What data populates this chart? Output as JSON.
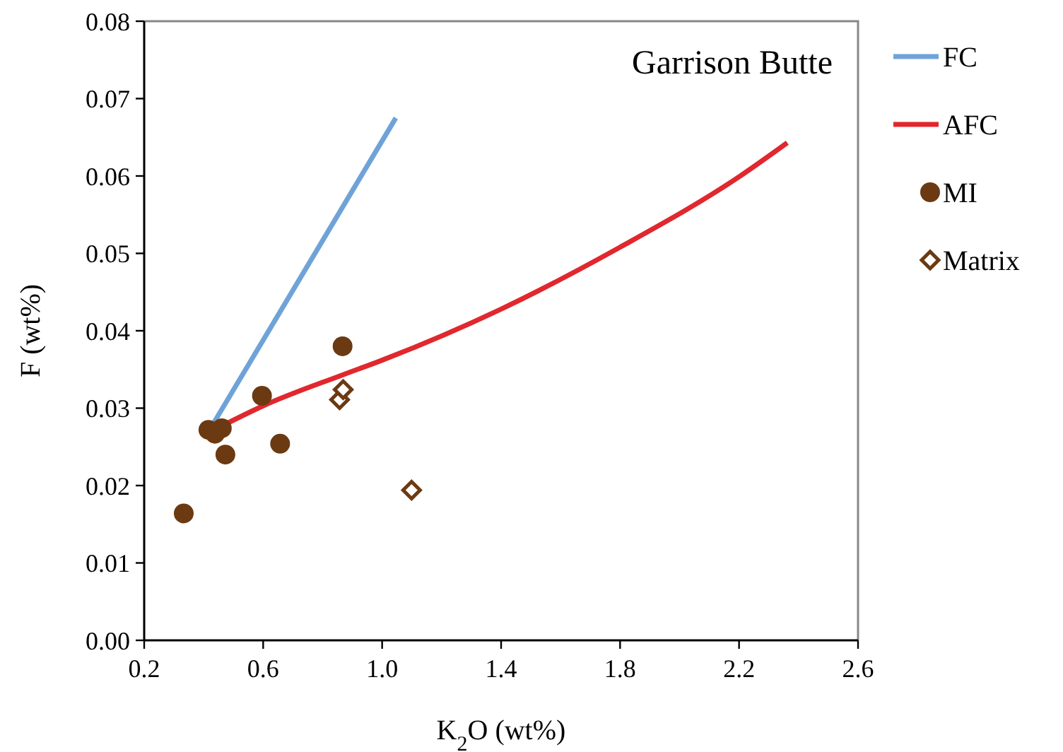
{
  "chart_data": {
    "type": "scatter",
    "title": "Garrison Butte",
    "xlabel": "K$_{2}$O (wt%)",
    "ylabel": "F (wt%)",
    "xlim": [
      0.2,
      2.6
    ],
    "xticks": [
      0.2,
      0.6,
      {
        "value": 1.0,
        "label": "1.0"
      },
      1.4,
      1.8,
      2.2,
      2.6
    ],
    "ylim": [
      0,
      0.08
    ],
    "yticks": [
      {
        "value": 0,
        "label": "0.00"
      },
      {
        "value": 0.01,
        "label": "0.01"
      },
      {
        "value": 0.02,
        "label": "0.02"
      },
      {
        "value": 0.03,
        "label": "0.03"
      },
      {
        "value": 0.04,
        "label": "0.04"
      },
      {
        "value": 0.05,
        "label": "0.05"
      },
      {
        "value": 0.06,
        "label": "0.06"
      },
      {
        "value": 0.07,
        "label": "0.07"
      },
      {
        "value": 0.08,
        "label": "0.08"
      }
    ],
    "grid": false,
    "legend": "right",
    "series": [
      {
        "name": "FC",
        "type": "line",
        "color": "#6fa3d8",
        "marker": "none",
        "x": [
          0.434,
          1.046
        ],
        "values": [
          0.0281,
          0.0675
        ]
      },
      {
        "name": "AFC",
        "type": "line",
        "color": "#e0282e",
        "marker": "none",
        "x": [
          0.461,
          0.6,
          0.867,
          1.0,
          1.4,
          1.8,
          2.2,
          2.362
        ],
        "values": [
          0.0277,
          0.0303,
          0.0343,
          0.0362,
          0.0428,
          0.0508,
          0.0599,
          0.0643
        ]
      },
      {
        "name": "MI",
        "color": "#6b3a12",
        "marker": "circle",
        "x": [
          0.333,
          0.416,
          0.438,
          0.461,
          0.473,
          0.596,
          0.657,
          0.867
        ],
        "values": [
          0.0164,
          0.0272,
          0.0267,
          0.0274,
          0.024,
          0.0316,
          0.0254,
          0.038
        ]
      },
      {
        "name": "Matrix",
        "color": "#6b3a12",
        "marker": "diamond",
        "x": [
          0.857,
          0.869,
          1.099
        ],
        "values": [
          0.0311,
          0.0324,
          0.0194
        ]
      }
    ]
  }
}
